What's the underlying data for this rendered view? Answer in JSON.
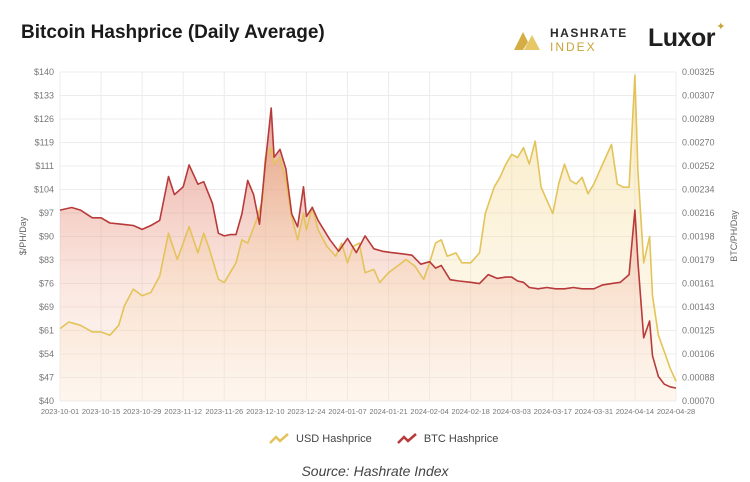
{
  "header": {
    "title": "Bitcoin Hashprice (Daily Average)",
    "brand_hashrate_line1": "HASHRATE",
    "brand_hashrate_line2": "INDEX",
    "brand_luxor": "Luxor"
  },
  "source_text": "Source: Hashrate Index",
  "colors": {
    "usd": "#e3c35a",
    "btc": "#b83a3a",
    "grid": "#ececec"
  },
  "chart_data": {
    "type": "line",
    "title": "Bitcoin Hashprice (Daily Average)",
    "ylabel": "$/PH/Day",
    "y2label": "BTC/PH/Day",
    "xlim": [
      "2023-10-01",
      "2024-04-28"
    ],
    "ylim": [
      40,
      140
    ],
    "y2lim": [
      0.0007,
      0.00325
    ],
    "y_ticks": [
      "$140",
      "$133",
      "$126",
      "$119",
      "$111",
      "$104",
      "$97",
      "$90",
      "$83",
      "$76",
      "$69",
      "$61",
      "$54",
      "$47",
      "$40"
    ],
    "y2_ticks": [
      "0.00325",
      "0.00307",
      "0.00289",
      "0.00270",
      "0.00252",
      "0.00234",
      "0.00216",
      "0.00198",
      "0.00179",
      "0.00161",
      "0.00143",
      "0.00125",
      "0.00106",
      "0.00088",
      "0.00070"
    ],
    "x_ticks": [
      "2023-10-01",
      "2023-10-15",
      "2023-10-29",
      "2023-11-12",
      "2023-11-26",
      "2023-12-10",
      "2023-12-24",
      "2024-01-07",
      "2024-01-21",
      "2024-02-04",
      "2024-02-18",
      "2024-03-03",
      "2024-03-17",
      "2024-03-31",
      "2024-04-14",
      "2024-04-28"
    ],
    "legend": [
      "USD Hashprice",
      "BTC Hashprice"
    ],
    "legend_position": "bottom",
    "grid": true,
    "series": [
      {
        "name": "USD Hashprice",
        "axis": "left",
        "points": [
          [
            "2023-10-01",
            62
          ],
          [
            "2023-10-04",
            64
          ],
          [
            "2023-10-08",
            63
          ],
          [
            "2023-10-12",
            61
          ],
          [
            "2023-10-15",
            61
          ],
          [
            "2023-10-18",
            60
          ],
          [
            "2023-10-21",
            63
          ],
          [
            "2023-10-23",
            69
          ],
          [
            "2023-10-26",
            74
          ],
          [
            "2023-10-29",
            72
          ],
          [
            "2023-11-01",
            73
          ],
          [
            "2023-11-04",
            78
          ],
          [
            "2023-11-07",
            91
          ],
          [
            "2023-11-10",
            83
          ],
          [
            "2023-11-12",
            88
          ],
          [
            "2023-11-14",
            93
          ],
          [
            "2023-11-17",
            85
          ],
          [
            "2023-11-19",
            91
          ],
          [
            "2023-11-21",
            86
          ],
          [
            "2023-11-24",
            77
          ],
          [
            "2023-11-26",
            76
          ],
          [
            "2023-11-28",
            79
          ],
          [
            "2023-11-30",
            82
          ],
          [
            "2023-12-02",
            89
          ],
          [
            "2023-12-04",
            88
          ],
          [
            "2023-12-07",
            95
          ],
          [
            "2023-12-09",
            101
          ],
          [
            "2023-12-10",
            114
          ],
          [
            "2023-12-12",
            117
          ],
          [
            "2023-12-13",
            112
          ],
          [
            "2023-12-15",
            114
          ],
          [
            "2023-12-17",
            107
          ],
          [
            "2023-12-19",
            96
          ],
          [
            "2023-12-21",
            89
          ],
          [
            "2023-12-23",
            97
          ],
          [
            "2023-12-24",
            92
          ],
          [
            "2023-12-26",
            99
          ],
          [
            "2023-12-28",
            92
          ],
          [
            "2023-12-31",
            87
          ],
          [
            "2024-01-03",
            84
          ],
          [
            "2024-01-05",
            88
          ],
          [
            "2024-01-07",
            82
          ],
          [
            "2024-01-09",
            87
          ],
          [
            "2024-01-11",
            88
          ],
          [
            "2024-01-13",
            79
          ],
          [
            "2024-01-16",
            80
          ],
          [
            "2024-01-18",
            76
          ],
          [
            "2024-01-21",
            79
          ],
          [
            "2024-01-24",
            81
          ],
          [
            "2024-01-27",
            83
          ],
          [
            "2024-01-30",
            81
          ],
          [
            "2024-02-02",
            77
          ],
          [
            "2024-02-04",
            82
          ],
          [
            "2024-02-06",
            88
          ],
          [
            "2024-02-08",
            89
          ],
          [
            "2024-02-10",
            84
          ],
          [
            "2024-02-13",
            85
          ],
          [
            "2024-02-15",
            82
          ],
          [
            "2024-02-18",
            82
          ],
          [
            "2024-02-21",
            85
          ],
          [
            "2024-02-23",
            97
          ],
          [
            "2024-02-26",
            105
          ],
          [
            "2024-02-28",
            108
          ],
          [
            "2024-03-01",
            112
          ],
          [
            "2024-03-03",
            115
          ],
          [
            "2024-03-05",
            114
          ],
          [
            "2024-03-07",
            117
          ],
          [
            "2024-03-09",
            112
          ],
          [
            "2024-03-11",
            119
          ],
          [
            "2024-03-13",
            105
          ],
          [
            "2024-03-15",
            101
          ],
          [
            "2024-03-17",
            97
          ],
          [
            "2024-03-19",
            106
          ],
          [
            "2024-03-21",
            112
          ],
          [
            "2024-03-23",
            107
          ],
          [
            "2024-03-25",
            106
          ],
          [
            "2024-03-27",
            108
          ],
          [
            "2024-03-29",
            103
          ],
          [
            "2024-03-31",
            106
          ],
          [
            "2024-04-02",
            110
          ],
          [
            "2024-04-04",
            114
          ],
          [
            "2024-04-06",
            118
          ],
          [
            "2024-04-08",
            106
          ],
          [
            "2024-04-10",
            105
          ],
          [
            "2024-04-12",
            105
          ],
          [
            "2024-04-14",
            139
          ],
          [
            "2024-04-15",
            110
          ],
          [
            "2024-04-17",
            82
          ],
          [
            "2024-04-19",
            90
          ],
          [
            "2024-04-20",
            72
          ],
          [
            "2024-04-22",
            60
          ],
          [
            "2024-04-24",
            55
          ],
          [
            "2024-04-26",
            50
          ],
          [
            "2024-04-28",
            46
          ]
        ]
      },
      {
        "name": "BTC Hashprice",
        "axis": "right",
        "points": [
          [
            "2023-10-01",
            0.00218
          ],
          [
            "2023-10-05",
            0.0022
          ],
          [
            "2023-10-08",
            0.00218
          ],
          [
            "2023-10-12",
            0.00212
          ],
          [
            "2023-10-15",
            0.00212
          ],
          [
            "2023-10-18",
            0.00208
          ],
          [
            "2023-10-22",
            0.00207
          ],
          [
            "2023-10-26",
            0.00206
          ],
          [
            "2023-10-29",
            0.00203
          ],
          [
            "2023-11-01",
            0.00206
          ],
          [
            "2023-11-04",
            0.0021
          ],
          [
            "2023-11-07",
            0.00244
          ],
          [
            "2023-11-09",
            0.0023
          ],
          [
            "2023-11-12",
            0.00236
          ],
          [
            "2023-11-14",
            0.00253
          ],
          [
            "2023-11-17",
            0.00238
          ],
          [
            "2023-11-19",
            0.0024
          ],
          [
            "2023-11-22",
            0.00223
          ],
          [
            "2023-11-24",
            0.002
          ],
          [
            "2023-11-26",
            0.00198
          ],
          [
            "2023-11-28",
            0.00199
          ],
          [
            "2023-11-30",
            0.00199
          ],
          [
            "2023-12-02",
            0.00215
          ],
          [
            "2023-12-04",
            0.00241
          ],
          [
            "2023-12-06",
            0.0023
          ],
          [
            "2023-12-08",
            0.00207
          ],
          [
            "2023-12-10",
            0.00254
          ],
          [
            "2023-12-12",
            0.00297
          ],
          [
            "2023-12-13",
            0.00259
          ],
          [
            "2023-12-15",
            0.00265
          ],
          [
            "2023-12-17",
            0.0025
          ],
          [
            "2023-12-19",
            0.00215
          ],
          [
            "2023-12-21",
            0.00205
          ],
          [
            "2023-12-23",
            0.00236
          ],
          [
            "2023-12-24",
            0.00213
          ],
          [
            "2023-12-26",
            0.0022
          ],
          [
            "2023-12-28",
            0.0021
          ],
          [
            "2024-01-01",
            0.00195
          ],
          [
            "2024-01-04",
            0.00186
          ],
          [
            "2024-01-07",
            0.00196
          ],
          [
            "2024-01-10",
            0.00185
          ],
          [
            "2024-01-13",
            0.00198
          ],
          [
            "2024-01-16",
            0.00188
          ],
          [
            "2024-01-19",
            0.00186
          ],
          [
            "2024-01-22",
            0.00185
          ],
          [
            "2024-01-26",
            0.00184
          ],
          [
            "2024-01-29",
            0.00183
          ],
          [
            "2024-02-01",
            0.00176
          ],
          [
            "2024-02-04",
            0.00178
          ],
          [
            "2024-02-06",
            0.00173
          ],
          [
            "2024-02-08",
            0.00175
          ],
          [
            "2024-02-11",
            0.00164
          ],
          [
            "2024-02-14",
            0.00163
          ],
          [
            "2024-02-18",
            0.00162
          ],
          [
            "2024-02-21",
            0.00161
          ],
          [
            "2024-02-24",
            0.00168
          ],
          [
            "2024-02-27",
            0.00165
          ],
          [
            "2024-03-01",
            0.00166
          ],
          [
            "2024-03-03",
            0.00166
          ],
          [
            "2024-03-05",
            0.00163
          ],
          [
            "2024-03-07",
            0.00162
          ],
          [
            "2024-03-09",
            0.00158
          ],
          [
            "2024-03-12",
            0.00157
          ],
          [
            "2024-03-15",
            0.00158
          ],
          [
            "2024-03-18",
            0.00157
          ],
          [
            "2024-03-21",
            0.00157
          ],
          [
            "2024-03-24",
            0.00158
          ],
          [
            "2024-03-27",
            0.00157
          ],
          [
            "2024-03-31",
            0.00157
          ],
          [
            "2024-04-03",
            0.0016
          ],
          [
            "2024-04-06",
            0.00161
          ],
          [
            "2024-04-09",
            0.00162
          ],
          [
            "2024-04-12",
            0.00168
          ],
          [
            "2024-04-14",
            0.00218
          ],
          [
            "2024-04-15",
            0.00178
          ],
          [
            "2024-04-17",
            0.00119
          ],
          [
            "2024-04-19",
            0.00132
          ],
          [
            "2024-04-20",
            0.00105
          ],
          [
            "2024-04-22",
            0.00089
          ],
          [
            "2024-04-24",
            0.00083
          ],
          [
            "2024-04-26",
            0.00081
          ],
          [
            "2024-04-28",
            0.0008
          ]
        ]
      }
    ]
  }
}
